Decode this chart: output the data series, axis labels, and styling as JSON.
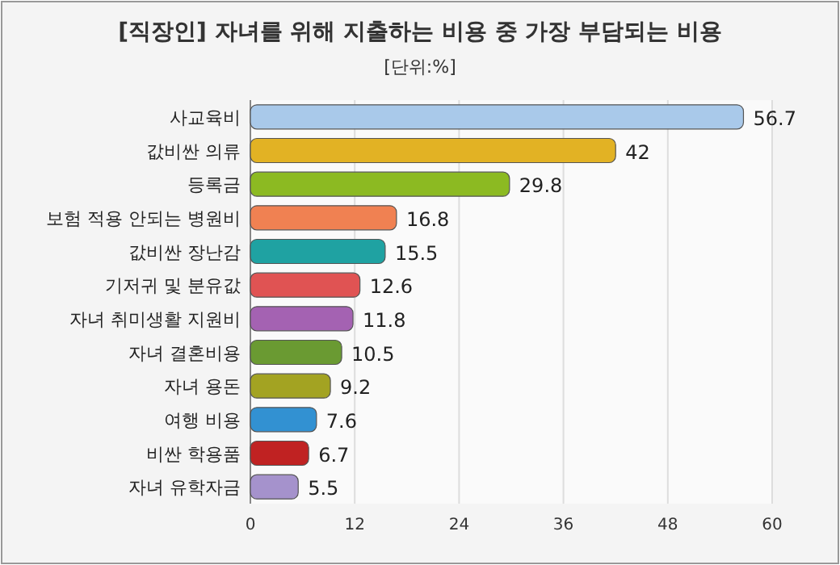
{
  "chart_data": {
    "type": "bar",
    "orientation": "horizontal",
    "title": "[직장인] 자녀를 위해 지출하는 비용 중 가장 부담되는 비용",
    "subtitle": "[단위:%]",
    "categories": [
      "사교육비",
      "값비싼 의류",
      "등록금",
      "보험 적용 안되는 병원비",
      "값비싼 장난감",
      "기저귀 및 분유값",
      "자녀 취미생활 지원비",
      "자녀 결혼비용",
      "자녀 용돈",
      "여행 비용",
      "비싼 학용품",
      "자녀 유학자금"
    ],
    "values": [
      56.7,
      42,
      29.8,
      16.8,
      15.5,
      12.6,
      11.8,
      10.5,
      9.2,
      7.6,
      6.7,
      5.5
    ],
    "colors": [
      "#a9c9ea",
      "#e2b224",
      "#8cba22",
      "#f08152",
      "#1fa2a2",
      "#e05353",
      "#a462b2",
      "#6a9a32",
      "#a3a322",
      "#3291d2",
      "#c02222",
      "#a592cc"
    ],
    "xlim": [
      0,
      60
    ],
    "xticks": [
      0,
      12,
      24,
      36,
      48,
      60
    ],
    "grid": "x",
    "data_labels": true
  }
}
